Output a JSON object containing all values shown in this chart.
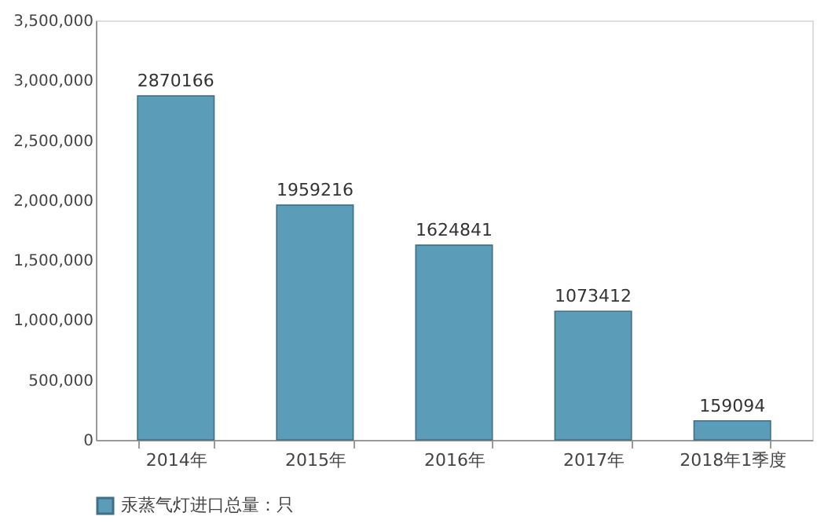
{
  "chart_data": {
    "type": "bar",
    "categories": [
      "2014年",
      "2015年",
      "2016年",
      "2017年",
      "2018年1季度"
    ],
    "series": [
      {
        "name": "汞蒸气灯进口总量：只",
        "color": "#5b9cb8",
        "values": [
          2870166,
          1959216,
          1624841,
          1073412,
          159094
        ]
      }
    ],
    "ylim": [
      0,
      3500000
    ],
    "yticks": [
      0,
      {
        "value": 500000,
        "label": "500,000"
      },
      {
        "value": 1000000,
        "label": "1,000,000"
      },
      {
        "value": 1500000,
        "label": "1,500,000"
      },
      {
        "value": 2000000,
        "label": "2,000,000"
      },
      {
        "value": 2500000,
        "label": "2,500,000"
      },
      {
        "value": 3000000,
        "label": "3,000,000"
      },
      {
        "value": 3500000,
        "label": "3,500,000"
      }
    ],
    "data_labels": true,
    "legend": "bottom",
    "grid": false
  }
}
